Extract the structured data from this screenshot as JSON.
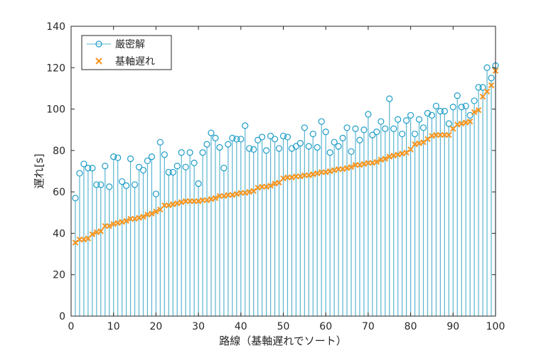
{
  "chart_data": {
    "type": "stem+scatter",
    "xlabel": "路線（基軸遅れでソート）",
    "ylabel": "遅れ[s]",
    "xlim": [
      0,
      100
    ],
    "ylim": [
      0,
      140
    ],
    "xticks": [
      0,
      10,
      20,
      30,
      40,
      50,
      60,
      70,
      80,
      90,
      100
    ],
    "yticks": [
      0,
      20,
      40,
      60,
      80,
      100,
      120,
      140
    ],
    "grid": false,
    "legend_position": "top-left",
    "colors": {
      "stem": "#5ab4d0",
      "marker": "#1b9cc6",
      "cross": "#f7941d"
    },
    "series": [
      {
        "name": "厳密解",
        "style": "stem-circle",
        "values": [
          57,
          69,
          73.5,
          71.5,
          71.5,
          63.5,
          63.5,
          72.5,
          62.5,
          77,
          76.5,
          65,
          63,
          76,
          63.5,
          72,
          70.5,
          75,
          77,
          59,
          84,
          78,
          69.5,
          69.5,
          72.5,
          79,
          72,
          79,
          74,
          64,
          79,
          83,
          88.5,
          86,
          81.5,
          71.5,
          83,
          86,
          85.5,
          85.5,
          92,
          81,
          80.5,
          85,
          86.5,
          80,
          87,
          85.5,
          81,
          87,
          86.5,
          81,
          82,
          83.5,
          91,
          82,
          88,
          81.5,
          94,
          89,
          79,
          84,
          82,
          86,
          91,
          79.5,
          90.5,
          85,
          90,
          97.5,
          87.5,
          89,
          94,
          90.5,
          105,
          90.5,
          95,
          88,
          94.5,
          97,
          88,
          95,
          91,
          98,
          97,
          101.5,
          99,
          99,
          93,
          101,
          106.5,
          101,
          101.5,
          97,
          104,
          110.5,
          110.5,
          120,
          115,
          121
        ]
      },
      {
        "name": "基軸遅れ",
        "style": "cross",
        "values": [
          35.5,
          37,
          37,
          37.5,
          39.5,
          40.5,
          41,
          43.5,
          43.5,
          44.5,
          45,
          45.5,
          46,
          47,
          47,
          47.5,
          48,
          49,
          49.5,
          50.5,
          51.5,
          53.5,
          53.5,
          54,
          54.5,
          55,
          55.5,
          55.5,
          55.5,
          55.5,
          56,
          56,
          56.5,
          57,
          58,
          58,
          58.5,
          58.5,
          59,
          59.5,
          59.5,
          60,
          60.5,
          62,
          62.5,
          62.5,
          63,
          64,
          64.5,
          66.5,
          67,
          67,
          67.5,
          67.5,
          68,
          68,
          68.5,
          69,
          69.5,
          69.5,
          70,
          70.5,
          71,
          71,
          71.5,
          72,
          73,
          73,
          73.5,
          74,
          74,
          74.5,
          75.5,
          76,
          77,
          77.5,
          78,
          78.5,
          79,
          80.5,
          83,
          83.5,
          84,
          85.5,
          87,
          87.5,
          87.5,
          87.5,
          87.5,
          90.5,
          92.5,
          93,
          93.5,
          94,
          98.5,
          99.5,
          106,
          108.5,
          111.5,
          118.5
        ]
      }
    ]
  }
}
